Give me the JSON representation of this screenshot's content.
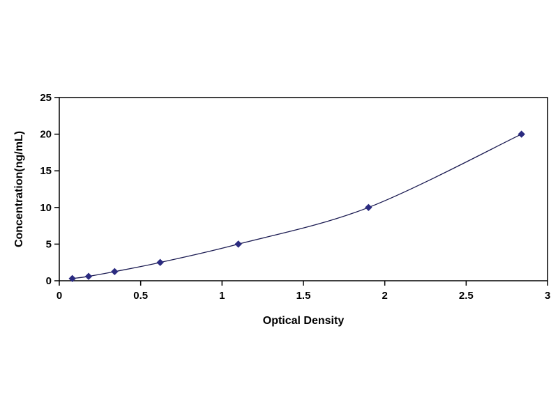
{
  "chart_data": {
    "type": "line",
    "title": "",
    "xlabel": "Optical Density",
    "ylabel": "Concentration(ng/mL)",
    "x": [
      0.08,
      0.18,
      0.34,
      0.62,
      1.1,
      1.9,
      2.84
    ],
    "y": [
      0.3,
      0.6,
      1.25,
      2.5,
      5,
      10,
      20
    ],
    "xlim": [
      0,
      3
    ],
    "ylim": [
      0,
      25
    ],
    "xticks": [
      0,
      0.5,
      1,
      1.5,
      2,
      2.5,
      3
    ],
    "xtick_labels": [
      "0",
      "0.5",
      "1",
      "1.5",
      "2",
      "2.5",
      "3"
    ],
    "yticks": [
      0,
      5,
      10,
      15,
      20,
      25
    ],
    "ytick_labels": [
      "0",
      "5",
      "10",
      "15",
      "20",
      "25"
    ],
    "grid": false,
    "legend": "none",
    "marker": "diamond",
    "series_name": "standard-curve",
    "line_color": "#1b1b52",
    "marker_color": "#2b2b80",
    "axis_color": "#000000",
    "background_color": "#ffffff"
  }
}
